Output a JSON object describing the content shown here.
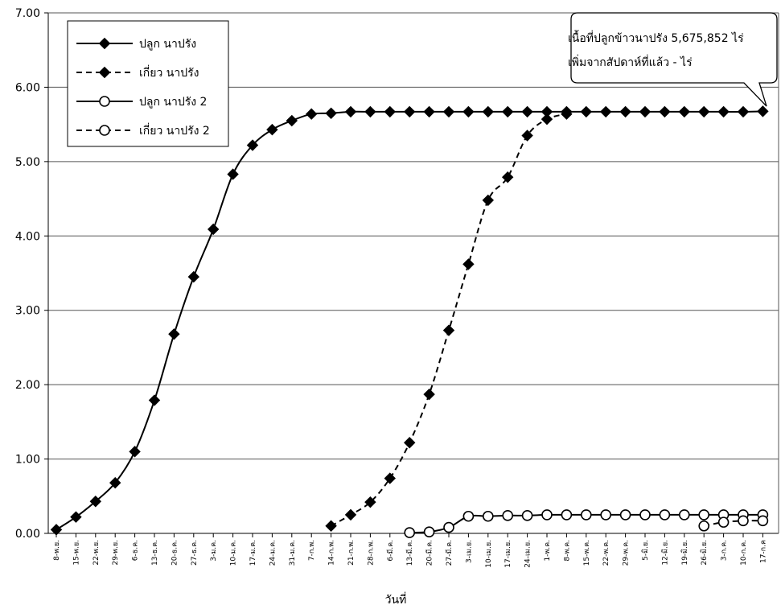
{
  "chart_data": {
    "type": "line",
    "xlabel": "วันที่",
    "ylabel": "",
    "ylim": [
      0,
      7
    ],
    "yticks": [
      "0.00",
      "1.00",
      "2.00",
      "3.00",
      "4.00",
      "5.00",
      "6.00",
      "7.00"
    ],
    "grid": "horizontal",
    "legend_position": "top-left",
    "categories": [
      "8-พ.ย.",
      "15-พ.ย.",
      "22-พ.ย.",
      "29-พ.ย.",
      "6-ธ.ค.",
      "13-ธ.ค.",
      "20-ธ.ค.",
      "27-ธ.ค.",
      "3-ม.ค.",
      "10-ม.ค.",
      "17-ม.ค.",
      "24-ม.ค.",
      "31-ม.ค.",
      "7-ก.พ.",
      "14-ก.พ.",
      "21-ก.พ.",
      "28-ก.พ.",
      "6-มี.ค.",
      "13-มี.ค.",
      "20-มี.ค.",
      "27-มี.ค.",
      "3-เม.ย.",
      "10-เม.ย.",
      "17-เม.ย.",
      "24-เม.ย.",
      "1-พ.ค.",
      "8-พ.ค.",
      "15-พ.ค.",
      "22-พ.ค.",
      "29-พ.ค.",
      "5-มิ.ย.",
      "12-มิ.ย.",
      "19-มิ.ย.",
      "26-มิ.ย.",
      "3-ก.ค.",
      "10-ก.ค.",
      "17-ก.ค"
    ],
    "series": [
      {
        "name": "ปลูก นาปรัง",
        "style": "solid",
        "marker": "diamond",
        "color": "#000000",
        "values": [
          0.05,
          0.22,
          0.43,
          0.68,
          1.1,
          1.79,
          2.68,
          3.45,
          4.09,
          4.83,
          5.22,
          5.43,
          5.55,
          5.64,
          5.65,
          5.67,
          5.67,
          5.67,
          5.67,
          5.67,
          5.67,
          5.67,
          5.67,
          5.67,
          5.67,
          5.67,
          5.67,
          5.67,
          5.67,
          5.67,
          5.67,
          5.67,
          5.67,
          5.67,
          5.67,
          5.67,
          5.676
        ]
      },
      {
        "name": "เกี่ยว นาปรัง",
        "style": "dashed",
        "marker": "diamond",
        "color": "#000000",
        "values": [
          null,
          null,
          null,
          null,
          null,
          null,
          null,
          null,
          null,
          null,
          null,
          null,
          null,
          null,
          0.1,
          0.25,
          0.42,
          0.74,
          1.22,
          1.87,
          2.73,
          3.62,
          4.48,
          4.79,
          5.35,
          5.57,
          5.64,
          null,
          null,
          null,
          null,
          null,
          null,
          null,
          null,
          null,
          null
        ]
      },
      {
        "name": "ปลูก นาปรัง 2",
        "style": "solid",
        "marker": "circle",
        "color": "#000000",
        "values": [
          null,
          null,
          null,
          null,
          null,
          null,
          null,
          null,
          null,
          null,
          null,
          null,
          null,
          null,
          null,
          null,
          null,
          null,
          0.01,
          0.02,
          0.08,
          0.23,
          0.23,
          0.24,
          0.24,
          0.25,
          0.25,
          0.25,
          0.25,
          0.25,
          0.25,
          0.25,
          0.25,
          0.25,
          0.25,
          0.25,
          0.25
        ]
      },
      {
        "name": "เกี่ยว นาปรัง 2",
        "style": "dashed",
        "marker": "circle",
        "color": "#000000",
        "values": [
          null,
          null,
          null,
          null,
          null,
          null,
          null,
          null,
          null,
          null,
          null,
          null,
          null,
          null,
          null,
          null,
          null,
          null,
          null,
          null,
          null,
          null,
          null,
          null,
          null,
          null,
          null,
          null,
          null,
          null,
          null,
          null,
          null,
          0.1,
          0.15,
          0.17,
          0.17
        ]
      }
    ],
    "annotation": {
      "line1": "เนื้อที่ปลูกข้าวนาปรัง 5,675,852 ไร่",
      "line2": "เพิ่มจากสัปดาห์ที่แล้ว  -  ไร่"
    }
  }
}
